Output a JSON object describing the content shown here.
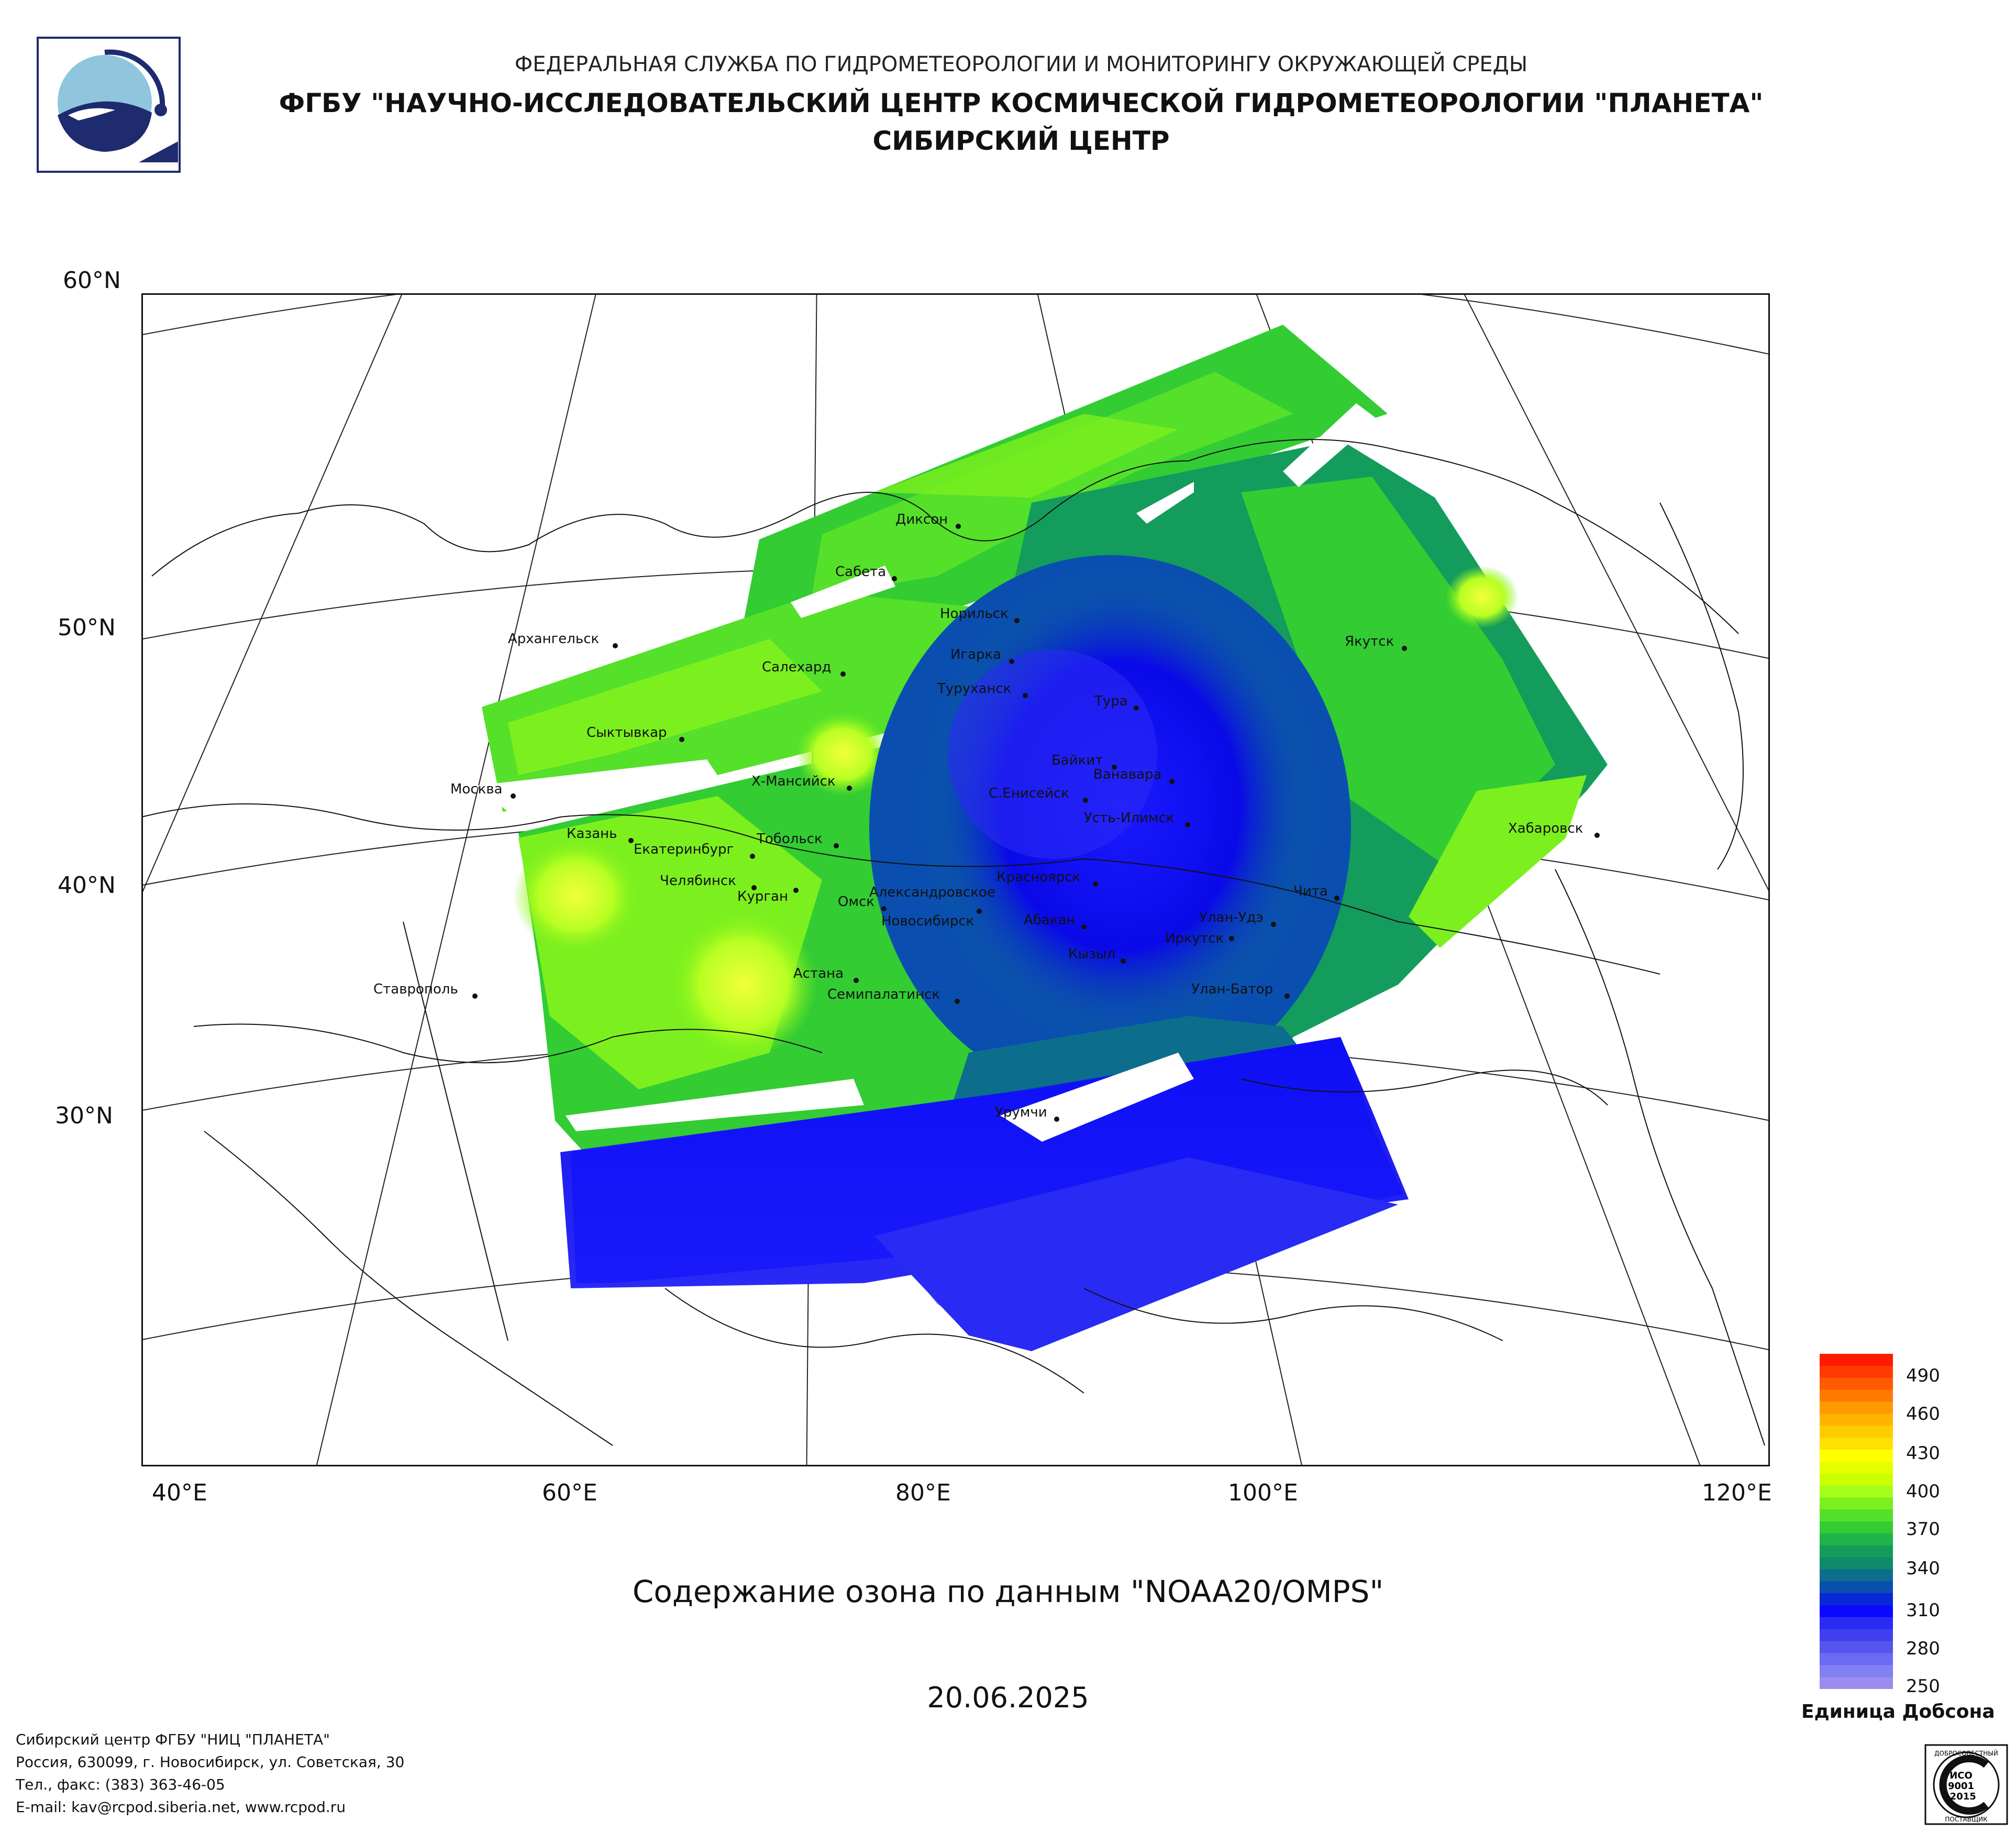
{
  "header": {
    "line1": "ФЕДЕРАЛЬНАЯ СЛУЖБА ПО ГИДРОМЕТЕОРОЛОГИИ И МОНИТОРИНГУ ОКРУЖАЮЩЕЙ СРЕДЫ",
    "line2": "ФГБУ \"НАУЧНО-ИССЛЕДОВАТЕЛЬСКИЙ ЦЕНТР КОСМИЧЕСКОЙ ГИДРОМЕТЕОРОЛОГИИ \"ПЛАНЕТА\"",
    "line3": "СИБИРСКИЙ ЦЕНТР"
  },
  "map": {
    "title": "Содержание озона по данным \"NOAA20/OMPS\"",
    "date": "20.06.2025",
    "lat_labels": [
      "60°N",
      "50°N",
      "40°N",
      "30°N"
    ],
    "lon_labels": [
      "40°E",
      "60°E",
      "80°E",
      "100°E",
      "120°E"
    ],
    "cities": [
      "Диксон",
      "Сабета",
      "Норильск",
      "Игарка",
      "Архангельск",
      "Салехард",
      "Туруханск",
      "Тура",
      "Якутск",
      "Сыктывкар",
      "Байкит",
      "Ванавара",
      "Москва",
      "Х-Мансийск",
      "С.Енисейск",
      "Усть-Илимск",
      "Хабаровск",
      "Казань",
      "Тобольск",
      "Екатеринбург",
      "Челябинск",
      "Курган",
      "Александровское",
      "Красноярск",
      "Чита",
      "Омск",
      "Новосибирск",
      "Абакан",
      "Улан-Удэ",
      "Иркутск",
      "Кызыл",
      "Астана",
      "Ставрополь",
      "Семипалатинск",
      "Улан-Батор",
      "Урумчи"
    ]
  },
  "legend": {
    "unit": "Единица Добсона",
    "ticks": [
      "490",
      "460",
      "430",
      "400",
      "370",
      "340",
      "310",
      "280",
      "250"
    ],
    "colors": [
      "#ff1a00",
      "#ff3b00",
      "#ff5a00",
      "#ff7a00",
      "#ff9900",
      "#ffb300",
      "#ffcc00",
      "#ffe000",
      "#ffff00",
      "#e6ff00",
      "#ccff00",
      "#a6ff1a",
      "#7cf01e",
      "#55e02a",
      "#33cc33",
      "#1fb44a",
      "#149c5c",
      "#0f8a6a",
      "#0c6e8c",
      "#0a4fb0",
      "#0828d8",
      "#0a0aff",
      "#2a2af5",
      "#3f3ff0",
      "#5555ee",
      "#6a6af2",
      "#8080f5",
      "#9a8cf0"
    ]
  },
  "footer": {
    "line1": "Сибирский центр ФГБУ \"НИЦ \"ПЛАНЕТА\"",
    "line2": "Россия, 630099, г. Новосибирск, ул. Советская, 30",
    "line3": "Тел., факс: (383) 363-46-05",
    "line4": "E-mail: kav@rcpod.siberia.net, www.rcpod.ru"
  },
  "iso_badge": {
    "top": "ДОБРОСОВЕСТНЫЙ",
    "mid1": "ИСО",
    "mid2": "9001",
    "mid3": "-2015",
    "bottom": "ПОСТАВЩИК"
  },
  "colors": {
    "low": "#0a0aff",
    "mid": "#1fb44a",
    "high": "#ffe000",
    "logo_blue": "#1e2b6e",
    "logo_light": "#8fc6de"
  }
}
